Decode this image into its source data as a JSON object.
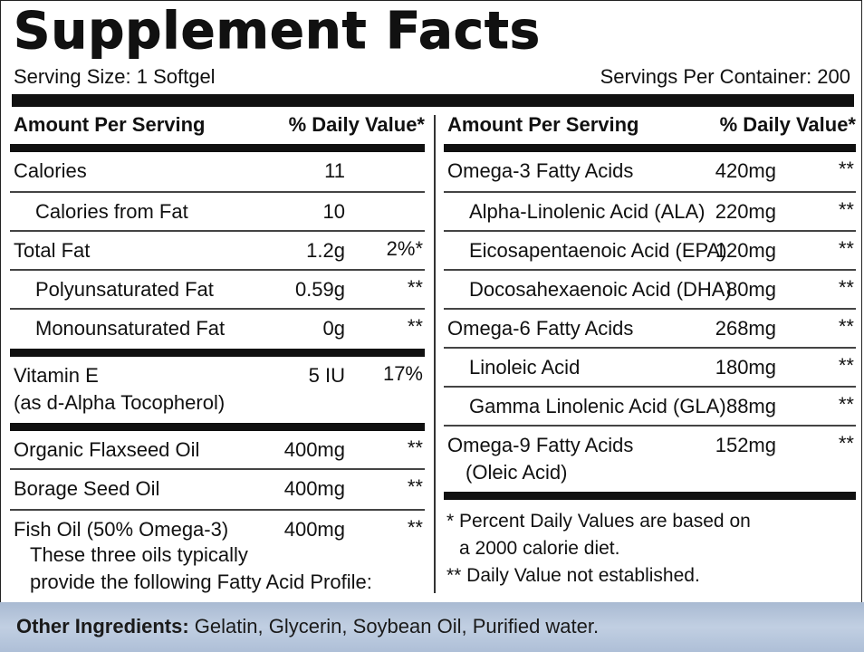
{
  "title": "Supplement Facts",
  "serving_size": "Serving Size: 1 Softgel",
  "servings_per_container": "Servings Per Container: 200",
  "left_header": {
    "amount": "Amount Per Serving",
    "dv": "% Daily Value*"
  },
  "right_header": {
    "amount": "Amount Per Serving",
    "dv": "% Daily Value*"
  },
  "left_rows": [
    {
      "name": "Calories",
      "amount": "11",
      "dv": ""
    },
    {
      "name": "Calories from Fat",
      "amount": "10",
      "dv": ""
    },
    {
      "name": "Total Fat",
      "amount": "1.2g",
      "dv": "2%*"
    },
    {
      "name": "Polyunsaturated Fat",
      "amount": "0.59g",
      "dv": "**"
    },
    {
      "name": "Monounsaturated Fat",
      "amount": "0g",
      "dv": "**"
    },
    {
      "name": "Vitamin E",
      "name_line2": "(as d-Alpha Tocopherol)",
      "amount": "5 IU",
      "dv": "17%"
    },
    {
      "name": "Organic Flaxseed Oil",
      "amount": "400mg",
      "dv": "**"
    },
    {
      "name": "Borage Seed Oil",
      "amount": "400mg",
      "dv": "**"
    },
    {
      "name": "Fish Oil (50% Omega-3)",
      "name_line2": "These three oils typically",
      "name_line3": "provide the following Fatty Acid Profile:",
      "amount": "400mg",
      "dv": "**"
    }
  ],
  "right_rows": [
    {
      "name": "Omega-3 Fatty Acids",
      "amount": "420mg",
      "dv": "**"
    },
    {
      "name": "Alpha-Linolenic Acid (ALA)",
      "amount": "220mg",
      "dv": "**"
    },
    {
      "name": "Eicosapentaenoic Acid (EPA)",
      "amount": "120mg",
      "dv": "**"
    },
    {
      "name": "Docosahexaenoic Acid (DHA)",
      "amount": "80mg",
      "dv": "**"
    },
    {
      "name": "Omega-6 Fatty Acids",
      "amount": "268mg",
      "dv": "**"
    },
    {
      "name": "Linoleic Acid",
      "amount": "180mg",
      "dv": "**"
    },
    {
      "name": "Gamma Linolenic Acid (GLA)",
      "amount": "88mg",
      "dv": "**"
    },
    {
      "name": "Omega-9 Fatty Acids",
      "name_line2": "(Oleic Acid)",
      "amount": "152mg",
      "dv": "**"
    }
  ],
  "notes": {
    "pdv_line1": "* Percent Daily Values are based on",
    "pdv_line2": "a 2000 calorie diet.",
    "dv_not_established": "** Daily Value not established."
  },
  "other_ingredients": {
    "label": "Other Ingredients:",
    "text": " Gelatin, Glycerin, Soybean Oil, Purified water."
  },
  "colors": {
    "text": "#111111",
    "footer_bg": "#b5c5db"
  }
}
